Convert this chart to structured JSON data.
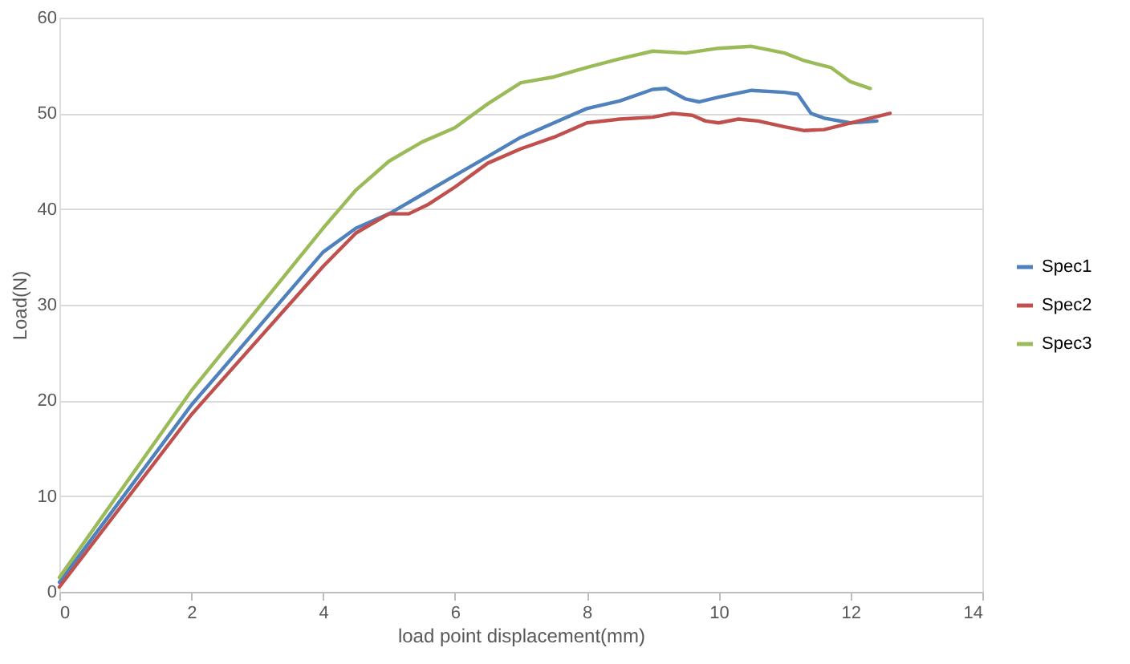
{
  "chart_data": {
    "type": "line",
    "xlabel": "load point displacement(mm)",
    "ylabel": "Load(N)",
    "xlim": [
      0,
      14
    ],
    "xticks": [
      0,
      2,
      4,
      6,
      8,
      10,
      12,
      14
    ],
    "ylim": [
      0,
      60
    ],
    "yticks": [
      0,
      10,
      20,
      30,
      40,
      50,
      60
    ],
    "grid": "y",
    "legend": "right",
    "marker": "none",
    "line_style": "solid",
    "series": [
      {
        "name": "Spec1",
        "color": "#4f81bd",
        "x": [
          0,
          2,
          4,
          4.5,
          5,
          5.5,
          6,
          6.5,
          7,
          7.5,
          8,
          8.5,
          9,
          9.2,
          9.5,
          9.7,
          10,
          10.5,
          11,
          11.2,
          11.4,
          11.6,
          12,
          12.4
        ],
        "values": [
          1,
          19.5,
          35.5,
          38,
          39.5,
          41.5,
          43.5,
          45.5,
          47.5,
          49,
          50.5,
          51.3,
          52.5,
          52.6,
          51.5,
          51.2,
          51.7,
          52.4,
          52.2,
          52,
          50,
          49.5,
          49,
          49.2
        ]
      },
      {
        "name": "Spec2",
        "color": "#c0504d",
        "x": [
          0,
          2,
          4,
          4.5,
          5,
          5.3,
          5.6,
          6,
          6.5,
          7,
          7.5,
          8,
          8.5,
          9,
          9.3,
          9.6,
          9.8,
          10,
          10.3,
          10.6,
          11,
          11.3,
          11.6,
          12,
          12.3,
          12.6
        ],
        "values": [
          0.5,
          18.5,
          34,
          37.5,
          39.5,
          39.5,
          40.5,
          42.3,
          44.8,
          46.3,
          47.5,
          49,
          49.4,
          49.6,
          50,
          49.8,
          49.2,
          49,
          49.4,
          49.2,
          48.6,
          48.2,
          48.3,
          49,
          49.5,
          50
        ]
      },
      {
        "name": "Spec3",
        "color": "#9bbb59",
        "x": [
          0,
          2,
          4,
          4.5,
          5,
          5.5,
          6,
          6.5,
          7,
          7.5,
          8,
          8.5,
          9,
          9.5,
          10,
          10.5,
          11,
          11.3,
          11.7,
          12,
          12.3
        ],
        "values": [
          1.5,
          21,
          38,
          42,
          45,
          47,
          48.5,
          51,
          53.2,
          53.8,
          54.8,
          55.7,
          56.5,
          56.3,
          56.8,
          57,
          56.3,
          55.5,
          54.8,
          53.3,
          52.6
        ]
      }
    ]
  }
}
